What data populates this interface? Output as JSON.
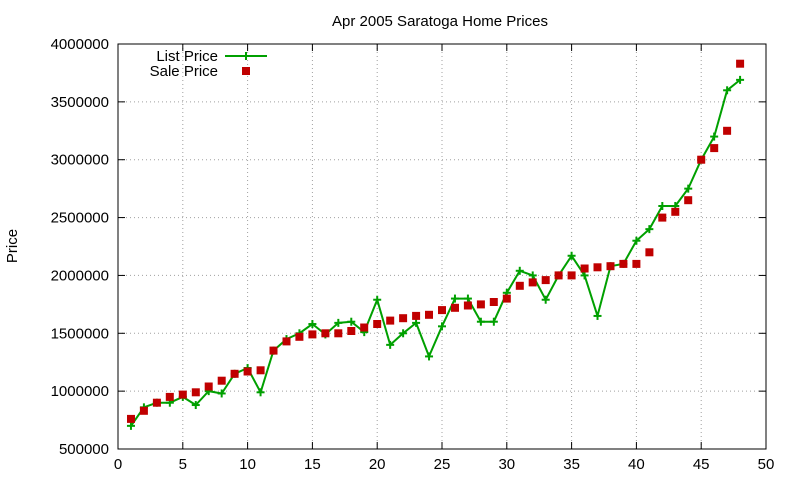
{
  "chart_data": {
    "type": "line",
    "title": "Apr 2005 Saratoga Home Prices",
    "xlabel": "",
    "ylabel": "Price",
    "xlim": [
      0,
      50
    ],
    "ylim": [
      500000,
      4000000
    ],
    "x_ticks": [
      0,
      5,
      10,
      15,
      20,
      25,
      30,
      35,
      40,
      45,
      50
    ],
    "y_ticks": [
      500000,
      1000000,
      1500000,
      2000000,
      2500000,
      3000000,
      3500000,
      4000000
    ],
    "grid": true,
    "legend_position": "top-left",
    "series": [
      {
        "name": "List Price",
        "style": "line-with-plus-markers",
        "color": "#00a000",
        "x": [
          1,
          2,
          3,
          4,
          5,
          6,
          7,
          8,
          9,
          10,
          11,
          12,
          13,
          14,
          15,
          16,
          17,
          18,
          19,
          20,
          21,
          22,
          23,
          24,
          25,
          26,
          27,
          28,
          29,
          30,
          31,
          32,
          33,
          34,
          35,
          36,
          37,
          38,
          39,
          40,
          41,
          42,
          43,
          44,
          45,
          46,
          47,
          48
        ],
        "values": [
          700000,
          860000,
          900000,
          900000,
          950000,
          880000,
          1000000,
          980000,
          1150000,
          1200000,
          990000,
          1350000,
          1450000,
          1500000,
          1580000,
          1490000,
          1590000,
          1600000,
          1510000,
          1790000,
          1400000,
          1500000,
          1590000,
          1300000,
          1560000,
          1800000,
          1800000,
          1600000,
          1600000,
          1850000,
          2040000,
          2000000,
          1790000,
          2000000,
          2170000,
          2000000,
          1650000,
          2080000,
          2100000,
          2300000,
          2400000,
          2600000,
          2600000,
          2750000,
          3000000,
          3200000,
          3600000,
          3690000
        ]
      },
      {
        "name": "Sale Price",
        "style": "square-markers",
        "color": "#c00000",
        "x": [
          1,
          2,
          3,
          4,
          5,
          6,
          7,
          8,
          9,
          10,
          11,
          12,
          13,
          14,
          15,
          16,
          17,
          18,
          19,
          20,
          21,
          22,
          23,
          24,
          25,
          26,
          27,
          28,
          29,
          30,
          31,
          32,
          33,
          34,
          35,
          36,
          37,
          38,
          39,
          40,
          41,
          42,
          43,
          44,
          45,
          46,
          47,
          48
        ],
        "values": [
          760000,
          830000,
          900000,
          950000,
          970000,
          990000,
          1040000,
          1090000,
          1150000,
          1170000,
          1180000,
          1350000,
          1430000,
          1470000,
          1490000,
          1500000,
          1500000,
          1520000,
          1550000,
          1580000,
          1610000,
          1630000,
          1650000,
          1660000,
          1700000,
          1720000,
          1740000,
          1750000,
          1770000,
          1800000,
          1910000,
          1940000,
          1960000,
          2000000,
          2000000,
          2060000,
          2070000,
          2080000,
          2100000,
          2100000,
          2200000,
          2500000,
          2550000,
          2650000,
          3000000,
          3100000,
          3250000,
          3830000
        ]
      }
    ]
  }
}
